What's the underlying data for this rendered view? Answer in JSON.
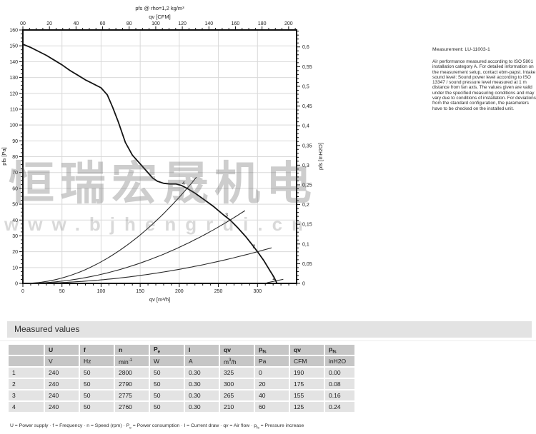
{
  "chart_data": {
    "type": "line",
    "title": "pfs @ rho=1,2 kg/m³",
    "top_axis": {
      "label": "qv [CFM]",
      "tick_values": [
        0,
        20,
        40,
        60,
        80,
        100,
        120,
        140,
        160,
        180,
        200
      ],
      "tick_labels": [
        "00",
        "20",
        "40",
        "60",
        "80",
        "100",
        "120",
        "140",
        "160",
        "180",
        "200"
      ],
      "minor_step": 5,
      "m3h_per_cfm": 1.699
    },
    "x_axis": {
      "label": "qv [m³/h]",
      "range": [
        0,
        350
      ],
      "tick_values": [
        0,
        50,
        100,
        150,
        200,
        250,
        300
      ],
      "tick_labels": [
        "0",
        "50",
        "100",
        "150",
        "200",
        "250",
        "300"
      ],
      "minor_step": 10,
      "grid_step": 50
    },
    "y_left": {
      "label": "pfs [Pa]",
      "range": [
        0,
        160
      ],
      "tick_step": 10,
      "minor_step": 2.5,
      "grid_step": 10
    },
    "y_right": {
      "label": "pfs [InH2O]",
      "tick_values": [
        0,
        0.05,
        0.1,
        0.15,
        0.2,
        0.25,
        0.3,
        0.35,
        0.4,
        0.45,
        0.5,
        0.55,
        0.6
      ],
      "tick_labels": [
        "0",
        "0,05",
        "0,1",
        "0,15",
        "0,2",
        "0,25",
        "0,3",
        "0,35",
        "0,4",
        "0,45",
        "0,5",
        "0,55",
        "0,6"
      ],
      "minor_step": 0.01,
      "pa_per_inh2o": 248.84
    },
    "fan_curve": {
      "name": "fan-performance-curve",
      "points": [
        [
          0,
          151
        ],
        [
          10,
          149
        ],
        [
          20,
          146.5
        ],
        [
          30,
          144
        ],
        [
          40,
          141
        ],
        [
          50,
          138
        ],
        [
          60,
          134.5
        ],
        [
          70,
          131.5
        ],
        [
          80,
          128.5
        ],
        [
          90,
          126
        ],
        [
          100,
          123.5
        ],
        [
          108,
          119
        ],
        [
          115,
          111
        ],
        [
          122,
          102
        ],
        [
          131,
          89
        ],
        [
          140,
          81
        ],
        [
          150,
          75.5
        ],
        [
          158,
          71
        ],
        [
          166,
          66.5
        ],
        [
          172,
          64.5
        ],
        [
          180,
          63.2
        ],
        [
          188,
          62.8
        ],
        [
          196,
          62.8
        ],
        [
          203,
          61.8
        ],
        [
          210,
          60
        ],
        [
          220,
          57
        ],
        [
          232,
          52.8
        ],
        [
          244,
          48.5
        ],
        [
          256,
          43.5
        ],
        [
          265,
          40
        ],
        [
          275,
          35
        ],
        [
          285,
          29.5
        ],
        [
          293,
          24.5
        ],
        [
          300,
          20
        ],
        [
          308,
          14.5
        ],
        [
          316,
          8
        ],
        [
          321,
          4
        ],
        [
          325,
          0
        ]
      ]
    },
    "operating_points": [
      {
        "label": "1",
        "qv": 325,
        "pfs": 0,
        "extend_to": 333
      },
      {
        "label": "2",
        "qv": 300,
        "pfs": 20,
        "extend_to": 318
      },
      {
        "label": "3",
        "qv": 265,
        "pfs": 40,
        "extend_to": 284
      },
      {
        "label": "4",
        "qv": 210,
        "pfs": 60,
        "extend_to": 222
      }
    ],
    "grid": true,
    "legend": "none"
  },
  "watermark": {
    "cjk_text": "恒瑞宏晟机电",
    "url_text": "www.bjhengrui.cn"
  },
  "right_panel": {
    "measurement": "Measurement: LU-11003-1",
    "note": "Air performance measured according to ISO 5801 installation category A. For detailed information on the measurement setup, contact ebm-papst. Intake sound level: Sound power level according to ISO 13347 / sound pressure level measured at 1 m distance from fan axis. The values given are valid under the specified measuring conditions and may vary due to conditions of installation. For deviations from the standard configuration, the parameters have to be checked on the installed unit."
  },
  "measured_values": {
    "section_title": "Measured values",
    "headers": [
      "",
      "U",
      "f",
      "n",
      "P_e",
      "I",
      "qv",
      "p_fs",
      "qv",
      "p_fs"
    ],
    "units": [
      "",
      "V",
      "Hz",
      "min^-1",
      "W",
      "A",
      "m^3/h",
      "Pa",
      "CFM",
      "inH2O"
    ],
    "rows": [
      [
        "1",
        "240",
        "50",
        "2800",
        "50",
        "0.30",
        "325",
        "0",
        "190",
        "0.00"
      ],
      [
        "2",
        "240",
        "50",
        "2790",
        "50",
        "0.30",
        "300",
        "20",
        "175",
        "0.08"
      ],
      [
        "3",
        "240",
        "50",
        "2775",
        "50",
        "0.30",
        "265",
        "40",
        "155",
        "0.16"
      ],
      [
        "4",
        "240",
        "50",
        "2760",
        "50",
        "0.30",
        "210",
        "60",
        "125",
        "0.24"
      ]
    ],
    "footnote": "U = Power supply · f = Frequency · n = Speed (rpm) · P_e = Power consumption · I = Current draw · qv = Air flow · p_fs = Pressure increase"
  },
  "colors": {
    "curve": "#141414",
    "system_curve": "#2a2a2a",
    "grid": "#d9d9d9",
    "frame": "#111111",
    "tick_text": "#1c1c1c",
    "table_header_bg": "#c6c6c6",
    "table_cell_bg": "#e3e3e3",
    "section_bar_bg": "#e3e3e3"
  }
}
